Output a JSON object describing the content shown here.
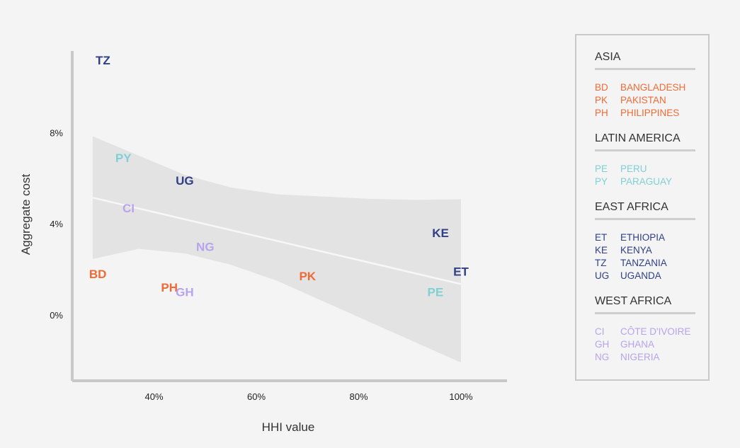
{
  "colors": {
    "asia": "#f06a35",
    "latin_america": "#7fd0d6",
    "east_africa": "#2f3f86",
    "west_africa": "#b7a3ee",
    "band": "#e3e3e3",
    "trend": "#f7f7f7",
    "axis": "#c8c8c8"
  },
  "chart_data": {
    "type": "scatter",
    "title": "",
    "xlabel": "HHI value",
    "ylabel": "Aggregate cost",
    "xlim": [
      0.24,
      1.09
    ],
    "ylim": [
      -0.029,
      0.116
    ],
    "xticks": [
      0.4,
      0.6,
      0.8,
      1.0
    ],
    "xtick_labels": [
      "40%",
      "60%",
      "80%",
      "100%"
    ],
    "yticks": [
      0,
      0.04,
      0.08
    ],
    "ytick_labels": [
      "0%",
      "4%",
      "8%"
    ],
    "grid": false,
    "legend_position": "right",
    "points": [
      {
        "code": "TZ",
        "x": 0.3,
        "y": 0.112,
        "group": "east_africa"
      },
      {
        "code": "PY",
        "x": 0.34,
        "y": 0.069,
        "group": "latin_america"
      },
      {
        "code": "UG",
        "x": 0.46,
        "y": 0.059,
        "group": "east_africa"
      },
      {
        "code": "CI",
        "x": 0.35,
        "y": 0.047,
        "group": "west_africa"
      },
      {
        "code": "NG",
        "x": 0.5,
        "y": 0.03,
        "group": "west_africa"
      },
      {
        "code": "BD",
        "x": 0.29,
        "y": 0.018,
        "group": "asia"
      },
      {
        "code": "PH",
        "x": 0.43,
        "y": 0.012,
        "group": "asia"
      },
      {
        "code": "GH",
        "x": 0.46,
        "y": 0.01,
        "group": "west_africa"
      },
      {
        "code": "PK",
        "x": 0.7,
        "y": 0.017,
        "group": "asia"
      },
      {
        "code": "KE",
        "x": 0.96,
        "y": 0.036,
        "group": "east_africa"
      },
      {
        "code": "ET",
        "x": 1.0,
        "y": 0.019,
        "group": "east_africa"
      },
      {
        "code": "PE",
        "x": 0.95,
        "y": 0.01,
        "group": "latin_america"
      }
    ],
    "trend": {
      "x": [
        0.28,
        1.0
      ],
      "y": [
        0.0515,
        0.0135
      ]
    },
    "confidence_band": {
      "x": [
        0.28,
        0.37,
        0.46,
        0.55,
        0.64,
        0.73,
        0.82,
        0.91,
        1.0
      ],
      "upper": [
        0.0785,
        0.07,
        0.0615,
        0.056,
        0.053,
        0.052,
        0.051,
        0.0505,
        0.0508
      ],
      "lower": [
        0.0245,
        0.029,
        0.027,
        0.022,
        0.015,
        0.006,
        -0.003,
        -0.012,
        -0.021
      ]
    }
  },
  "legend": {
    "groups": [
      {
        "key": "asia",
        "title": "ASIA",
        "items": [
          {
            "code": "BD",
            "name": "BANGLADESH"
          },
          {
            "code": "PK",
            "name": "PAKISTAN"
          },
          {
            "code": "PH",
            "name": "PHILIPPINES"
          }
        ]
      },
      {
        "key": "latin_america",
        "title": "LATIN AMERICA",
        "items": [
          {
            "code": "PE",
            "name": "PERU"
          },
          {
            "code": "PY",
            "name": "PARAGUAY"
          }
        ]
      },
      {
        "key": "east_africa",
        "title": "EAST AFRICA",
        "items": [
          {
            "code": "ET",
            "name": "ETHIOPIA"
          },
          {
            "code": "KE",
            "name": "KENYA"
          },
          {
            "code": "TZ",
            "name": "TANZANIA"
          },
          {
            "code": "UG",
            "name": "UGANDA"
          }
        ]
      },
      {
        "key": "west_africa",
        "title": "WEST AFRICA",
        "items": [
          {
            "code": "CI",
            "name": "CÔTE D'IVOIRE"
          },
          {
            "code": "GH",
            "name": "GHANA"
          },
          {
            "code": "NG",
            "name": "NIGERIA"
          }
        ]
      }
    ]
  }
}
